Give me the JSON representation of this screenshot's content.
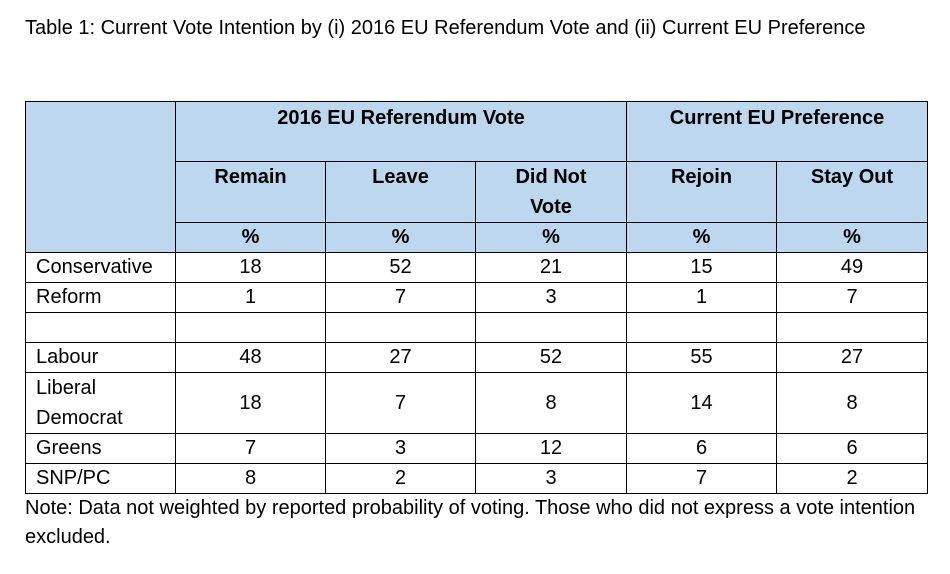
{
  "title": "Table 1: Current Vote Intention by (i) 2016 EU Referendum Vote and (ii) Current EU Preference",
  "note": "Note: Data not weighted by reported probability of voting. Those who did not express a vote intention excluded.",
  "table": {
    "groups": [
      "2016 EU Referendum Vote",
      "Current EU Preference"
    ],
    "columns": [
      "Remain",
      "Leave",
      "Did Not Vote",
      "Rejoin",
      "Stay Out"
    ],
    "unit": "%",
    "rows": [
      {
        "label": "Conservative",
        "values": [
          "18",
          "52",
          "21",
          "15",
          "49"
        ]
      },
      {
        "label": "Reform",
        "values": [
          "1",
          "7",
          "3",
          "1",
          "7"
        ]
      },
      {
        "label": "",
        "values": [
          "",
          "",
          "",
          "",
          ""
        ]
      },
      {
        "label": "Labour",
        "values": [
          "48",
          "27",
          "52",
          "55",
          "27"
        ]
      },
      {
        "label": "Liberal Democrat",
        "values": [
          "18",
          "7",
          "8",
          "14",
          "8"
        ]
      },
      {
        "label": "Greens",
        "values": [
          "7",
          "3",
          "12",
          "6",
          "6"
        ]
      },
      {
        "label": "SNP/PC",
        "values": [
          "8",
          "2",
          "3",
          "7",
          "2"
        ]
      }
    ]
  },
  "colors": {
    "header_fill": "#bdd7ee",
    "border": "#000000"
  }
}
